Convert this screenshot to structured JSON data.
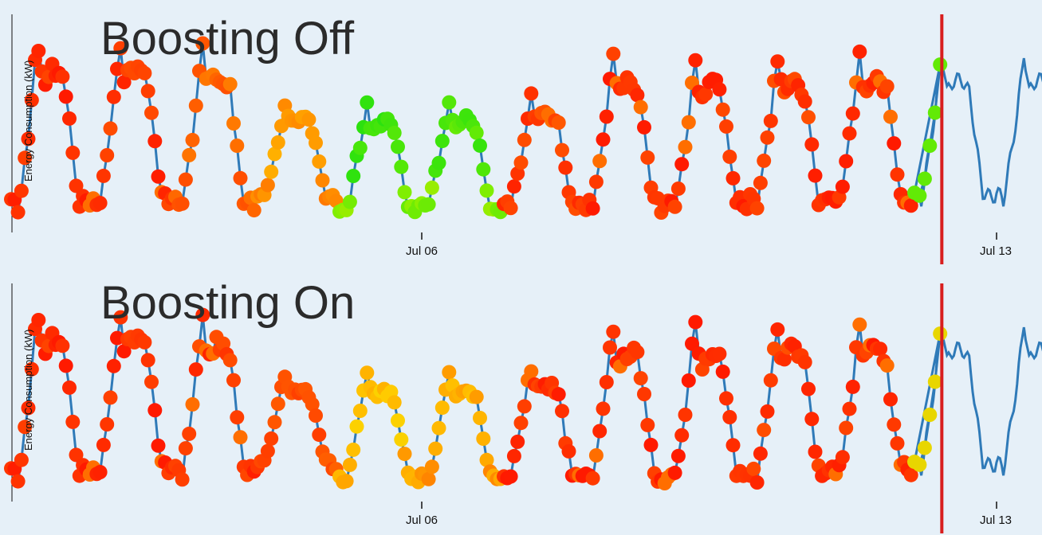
{
  "chart_data": [
    {
      "type": "scatter",
      "title": "Boosting Off",
      "ylabel": "Energy Consumption (kW)",
      "xlabel": "",
      "x_range": [
        "2015-07-01",
        "2015-07-14"
      ],
      "x_ticks": [
        "Jul 06",
        "Jul 13"
      ],
      "tick_dates": [
        "2015-07-06",
        "2015-07-13"
      ],
      "forecast_boundary": "2015-07-12",
      "grid": false,
      "line_color": "#2f7ab8",
      "boundary_color": "#d81e1e",
      "point_color_scale": [
        "#ff1a00",
        "#ff7a00",
        "#ffd000",
        "#8cf000",
        "#22e010"
      ],
      "day_profiles": [
        {
          "date": "2015-07-01",
          "peak": 0.93,
          "low": 0.04,
          "anomaly": 0.05
        },
        {
          "date": "2015-07-02",
          "peak": 0.93,
          "low": 0.06,
          "anomaly": 0.08
        },
        {
          "date": "2015-07-03",
          "peak": 0.9,
          "low": 0.05,
          "anomaly": 0.2
        },
        {
          "date": "2015-07-04",
          "peak": 0.62,
          "low": 0.12,
          "anomaly": 0.35
        },
        {
          "date": "2015-07-05",
          "peak": 0.62,
          "low": 0.05,
          "anomaly": 0.92
        },
        {
          "date": "2015-07-06",
          "peak": 0.64,
          "low": 0.06,
          "anomaly": 0.9
        },
        {
          "date": "2015-07-07",
          "peak": 0.66,
          "low": 0.06,
          "anomaly": 0.1
        },
        {
          "date": "2015-07-08",
          "peak": 0.85,
          "low": 0.04,
          "anomaly": 0.06
        },
        {
          "date": "2015-07-09",
          "peak": 0.84,
          "low": 0.05,
          "anomaly": 0.06
        },
        {
          "date": "2015-07-10",
          "peak": 0.86,
          "low": 0.06,
          "anomaly": 0.08
        },
        {
          "date": "2015-07-11",
          "peak": 0.86,
          "low": 0.08,
          "anomaly": 0.05
        }
      ],
      "forecast_profiles": [
        {
          "date": "2015-07-12",
          "peak": 0.86,
          "low": 0.1
        },
        {
          "date": "2015-07-13",
          "peak": 0.86,
          "low": 0.1
        }
      ],
      "y_range": [
        0,
        1
      ]
    },
    {
      "type": "scatter",
      "title": "Boosting On",
      "ylabel": "Energy Consumption (kW)",
      "xlabel": "",
      "x_range": [
        "2015-07-01",
        "2015-07-14"
      ],
      "x_ticks": [
        "Jul 06",
        "Jul 13"
      ],
      "tick_dates": [
        "2015-07-06",
        "2015-07-13"
      ],
      "forecast_boundary": "2015-07-12",
      "grid": false,
      "line_color": "#2f7ab8",
      "boundary_color": "#d81e1e",
      "point_color_scale": [
        "#ff1a00",
        "#ff7a00",
        "#ffd000",
        "#8cf000",
        "#22e010"
      ],
      "day_profiles": [
        {
          "date": "2015-07-01",
          "peak": 0.93,
          "low": 0.04,
          "anomaly": 0.05
        },
        {
          "date": "2015-07-02",
          "peak": 0.93,
          "low": 0.06,
          "anomaly": 0.05
        },
        {
          "date": "2015-07-03",
          "peak": 0.9,
          "low": 0.05,
          "anomaly": 0.08
        },
        {
          "date": "2015-07-04",
          "peak": 0.62,
          "low": 0.12,
          "anomaly": 0.15
        },
        {
          "date": "2015-07-05",
          "peak": 0.62,
          "low": 0.05,
          "anomaly": 0.45
        },
        {
          "date": "2015-07-06",
          "peak": 0.64,
          "low": 0.06,
          "anomaly": 0.4
        },
        {
          "date": "2015-07-07",
          "peak": 0.66,
          "low": 0.06,
          "anomaly": 0.05
        },
        {
          "date": "2015-07-08",
          "peak": 0.85,
          "low": 0.04,
          "anomaly": 0.05
        },
        {
          "date": "2015-07-09",
          "peak": 0.84,
          "low": 0.05,
          "anomaly": 0.05
        },
        {
          "date": "2015-07-10",
          "peak": 0.86,
          "low": 0.06,
          "anomaly": 0.08
        },
        {
          "date": "2015-07-11",
          "peak": 0.86,
          "low": 0.08,
          "anomaly": 0.05
        }
      ],
      "forecast_profiles": [
        {
          "date": "2015-07-12",
          "peak": 0.86,
          "low": 0.1
        },
        {
          "date": "2015-07-13",
          "peak": 0.86,
          "low": 0.1
        }
      ],
      "y_range": [
        0,
        1
      ]
    }
  ]
}
